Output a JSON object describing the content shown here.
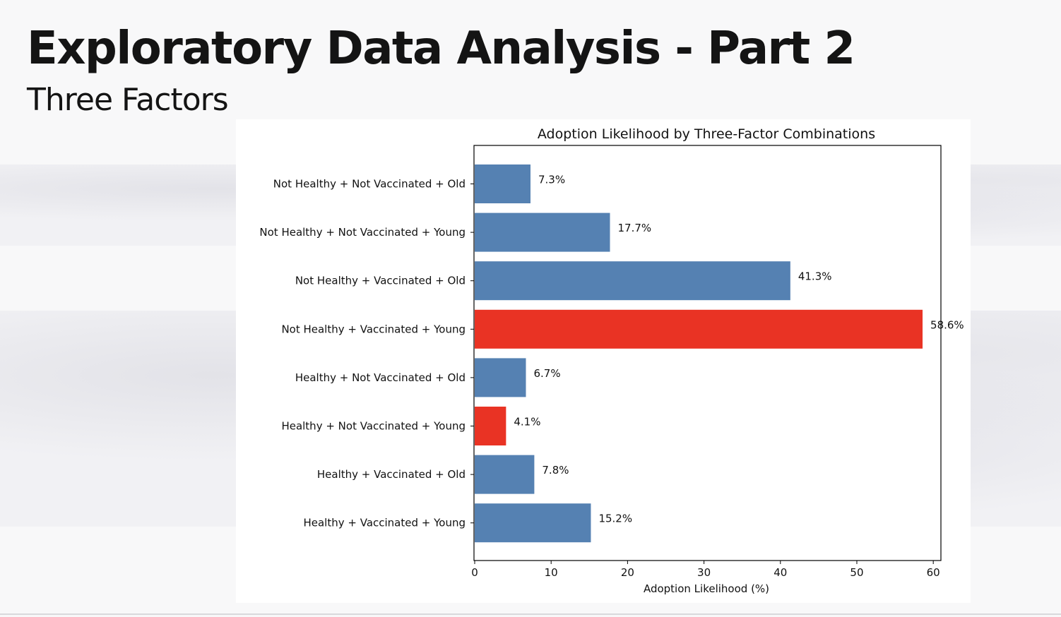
{
  "slide": {
    "title": "Exploratory Data Analysis - Part 2",
    "subtitle": "Three Factors"
  },
  "colors": {
    "default_bar": "#5581b2",
    "highlight_bar": "#e93324"
  },
  "chart_data": {
    "type": "bar",
    "orientation": "horizontal",
    "title": "Adoption Likelihood by Three-Factor Combinations",
    "xlabel": "Adoption Likelihood (%)",
    "ylabel": "",
    "xlim": [
      0,
      61
    ],
    "xticks": [
      0,
      10,
      20,
      30,
      40,
      50,
      60
    ],
    "grid": false,
    "categories": [
      "Not Healthy + Not Vaccinated + Old",
      "Not Healthy + Not Vaccinated + Young",
      "Not Healthy + Vaccinated + Old",
      "Not Healthy + Vaccinated + Young",
      "Healthy + Not Vaccinated + Old",
      "Healthy + Not Vaccinated + Young",
      "Healthy + Vaccinated + Old",
      "Healthy + Vaccinated + Young"
    ],
    "values": [
      7.3,
      17.7,
      41.3,
      58.6,
      6.7,
      4.1,
      7.8,
      15.2
    ],
    "value_labels": [
      "7.3%",
      "17.7%",
      "41.3%",
      "58.6%",
      "6.7%",
      "4.1%",
      "7.8%",
      "15.2%"
    ],
    "highlighted": [
      false,
      false,
      false,
      true,
      false,
      true,
      false,
      false
    ]
  }
}
